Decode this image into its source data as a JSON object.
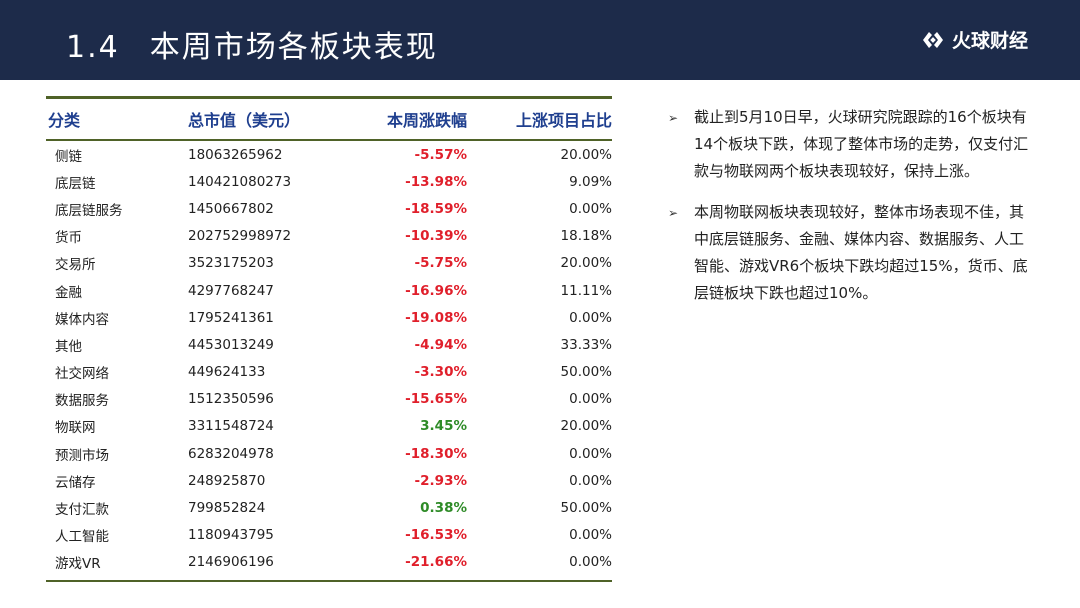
{
  "header": {
    "number": "1.4",
    "title": "本周市场各板块表现",
    "logo_text": "火球财经"
  },
  "table": {
    "headers": [
      "分类",
      "总市值（美元）",
      "本周涨跌幅",
      "上涨项目占比"
    ],
    "rows": [
      {
        "category": "侧链",
        "market_cap": "18063265962",
        "change": "-5.57%",
        "up_ratio": "20.00%"
      },
      {
        "category": "底层链",
        "market_cap": "140421080273",
        "change": "-13.98%",
        "up_ratio": "9.09%"
      },
      {
        "category": "底层链服务",
        "market_cap": "1450667802",
        "change": "-18.59%",
        "up_ratio": "0.00%"
      },
      {
        "category": "货币",
        "market_cap": "202752998972",
        "change": "-10.39%",
        "up_ratio": "18.18%"
      },
      {
        "category": "交易所",
        "market_cap": "3523175203",
        "change": "-5.75%",
        "up_ratio": "20.00%"
      },
      {
        "category": "金融",
        "market_cap": "4297768247",
        "change": "-16.96%",
        "up_ratio": "11.11%"
      },
      {
        "category": "媒体内容",
        "market_cap": "1795241361",
        "change": "-19.08%",
        "up_ratio": "0.00%"
      },
      {
        "category": "其他",
        "market_cap": "4453013249",
        "change": "-4.94%",
        "up_ratio": "33.33%"
      },
      {
        "category": "社交网络",
        "market_cap": "449624133",
        "change": "-3.30%",
        "up_ratio": "50.00%"
      },
      {
        "category": "数据服务",
        "market_cap": "1512350596",
        "change": "-15.65%",
        "up_ratio": "0.00%"
      },
      {
        "category": "物联网",
        "market_cap": "3311548724",
        "change": "3.45%",
        "up_ratio": "20.00%"
      },
      {
        "category": "预测市场",
        "market_cap": "6283204978",
        "change": "-18.30%",
        "up_ratio": "0.00%"
      },
      {
        "category": "云储存",
        "market_cap": "248925870",
        "change": "-2.93%",
        "up_ratio": "0.00%"
      },
      {
        "category": "支付汇款",
        "market_cap": "799852824",
        "change": "0.38%",
        "up_ratio": "50.00%"
      },
      {
        "category": "人工智能",
        "market_cap": "1180943795",
        "change": "-16.53%",
        "up_ratio": "0.00%"
      },
      {
        "category": "游戏VR",
        "market_cap": "2146906196",
        "change": "-21.66%",
        "up_ratio": "0.00%"
      }
    ]
  },
  "colors": {
    "header_bg": "#1d2b4a",
    "header_text": "#1f3f8f",
    "rule": "#4f6228",
    "negative": "#e01f2b",
    "positive": "#2e8b27"
  },
  "notes": [
    {
      "icon": "arrow-bullet-icon",
      "text": "截止到5月10日早，火球研究院跟踪的16个板块有14个板块下跌，体现了整体市场的走势，仅支付汇款与物联网两个板块表现较好，保持上涨。"
    },
    {
      "icon": "arrow-bullet-icon",
      "text": "本周物联网板块表现较好，整体市场表现不佳，其中底层链服务、金融、媒体内容、数据服务、人工智能、游戏VR6个板块下跌均超过15%，货币、底层链板块下跌也超过10%。"
    }
  ]
}
